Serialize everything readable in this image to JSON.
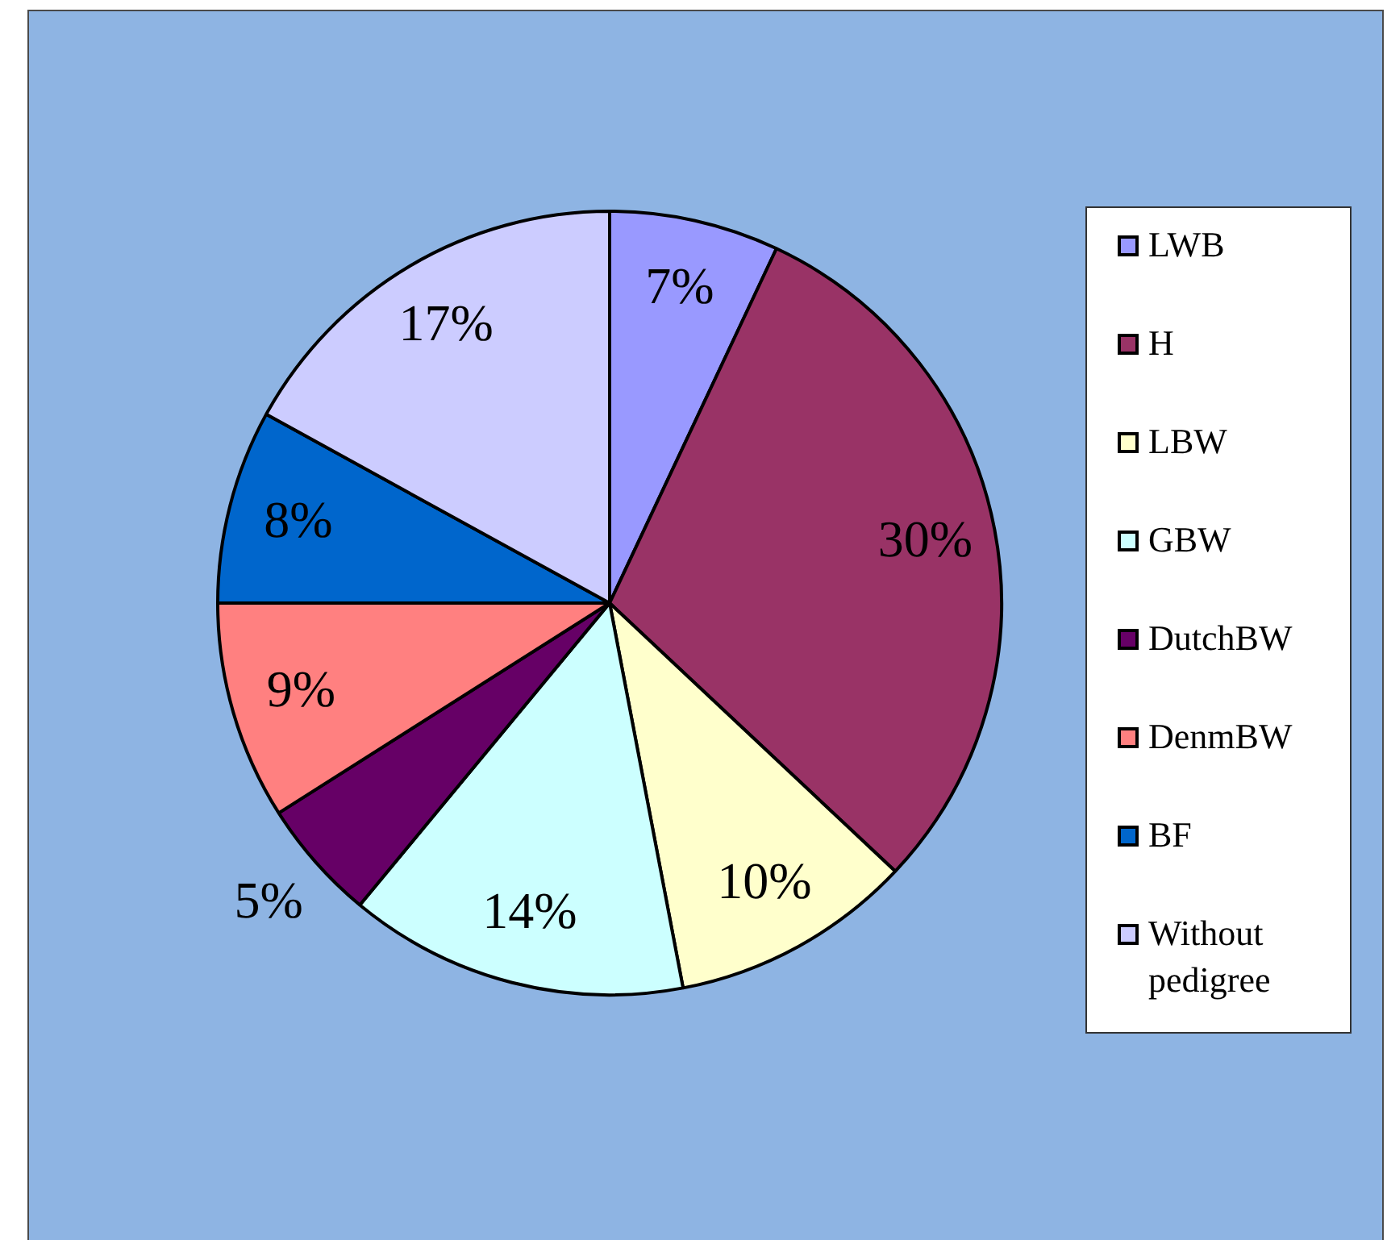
{
  "chart_data": {
    "type": "pie",
    "categories": [
      "LWB",
      "H",
      "LBW",
      "GBW",
      "DutchBW",
      "DenmBW",
      "BF",
      "Without pedigree"
    ],
    "values": [
      7,
      30,
      10,
      14,
      5,
      9,
      8,
      17
    ],
    "colors": [
      "#9999ff",
      "#993366",
      "#ffffcc",
      "#ccffff",
      "#660066",
      "#ff8080",
      "#0066cc",
      "#ccccff"
    ],
    "value_labels": [
      "7%",
      "30%",
      "10%",
      "14%",
      "5%",
      "9%",
      "8%",
      "17%"
    ],
    "legend": "right"
  }
}
